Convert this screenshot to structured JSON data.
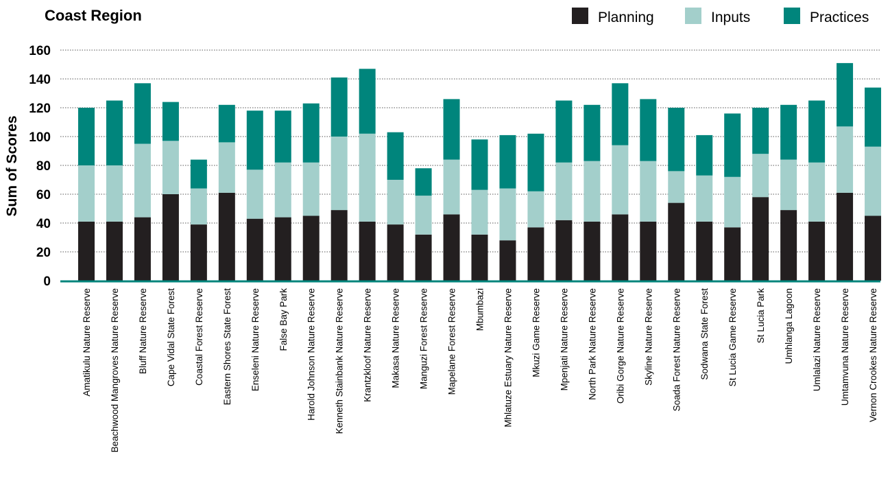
{
  "chart_data": {
    "type": "bar",
    "stacked": true,
    "title": "Coast Region",
    "xlabel": "",
    "ylabel": "Sum of Scores",
    "ylim": [
      0,
      160
    ],
    "yticks": [
      0,
      20,
      40,
      60,
      80,
      100,
      120,
      140,
      160
    ],
    "grid": true,
    "legend_position": "top-right",
    "categories": [
      "Amatikulu Nature Reserve",
      "Beachwood Mangroves Nature Reserve",
      "Bluff Nature Reserve",
      "Cape Vidal State Forest",
      "Coastal Forest Reserve",
      "Eastern Shores State Forest",
      "Enseleni Nature Reserve",
      "False Bay Park",
      "Harold Johnson Nature Reserve",
      "Kenneth Stainbank Nature Reserve",
      "Krantzkloof Nature Reserve",
      "Makasa Nature Reserve",
      "Manguzi Forest Reserve",
      "Mapelane Forest Reserve",
      "Mbumbazi",
      "Mhlatuze Estuary Nature Reserve",
      "Mkuzi Game Reserve",
      "Mpenjati Nature Reserve",
      "North Park Nature Reserve",
      "Oribi Gorge Nature Reserve",
      "Skyline Nature Reserve",
      "Soada Forest Nature Reserve",
      "Sodwana State Forest",
      "St Lucia Game Reserve",
      "St Lucia Park",
      "Umhlanga Lagoon",
      "Umlalazi Nature Reserve",
      "Umtamvuna Nature Reserve",
      "Vernon Crookes Nature Reserve"
    ],
    "series": [
      {
        "name": "Planning",
        "color": "#231f20",
        "values": [
          41,
          41,
          44,
          60,
          39,
          61,
          43,
          44,
          45,
          49,
          41,
          39,
          32,
          46,
          32,
          28,
          37,
          42,
          41,
          46,
          41,
          54,
          41,
          37,
          58,
          49,
          41,
          61,
          45
        ]
      },
      {
        "name": "Inputs",
        "color": "#a3cfcb",
        "values": [
          39,
          39,
          51,
          37,
          25,
          35,
          34,
          38,
          37,
          51,
          61,
          31,
          27,
          38,
          31,
          36,
          25,
          40,
          42,
          48,
          42,
          22,
          32,
          35,
          30,
          35,
          41,
          46,
          48
        ]
      },
      {
        "name": "Practices",
        "color": "#00857c",
        "values": [
          40,
          45,
          42,
          27,
          20,
          26,
          41,
          36,
          41,
          41,
          45,
          33,
          19,
          42,
          35,
          37,
          40,
          43,
          39,
          43,
          43,
          44,
          28,
          44,
          32,
          38,
          43,
          44,
          41
        ]
      }
    ]
  }
}
